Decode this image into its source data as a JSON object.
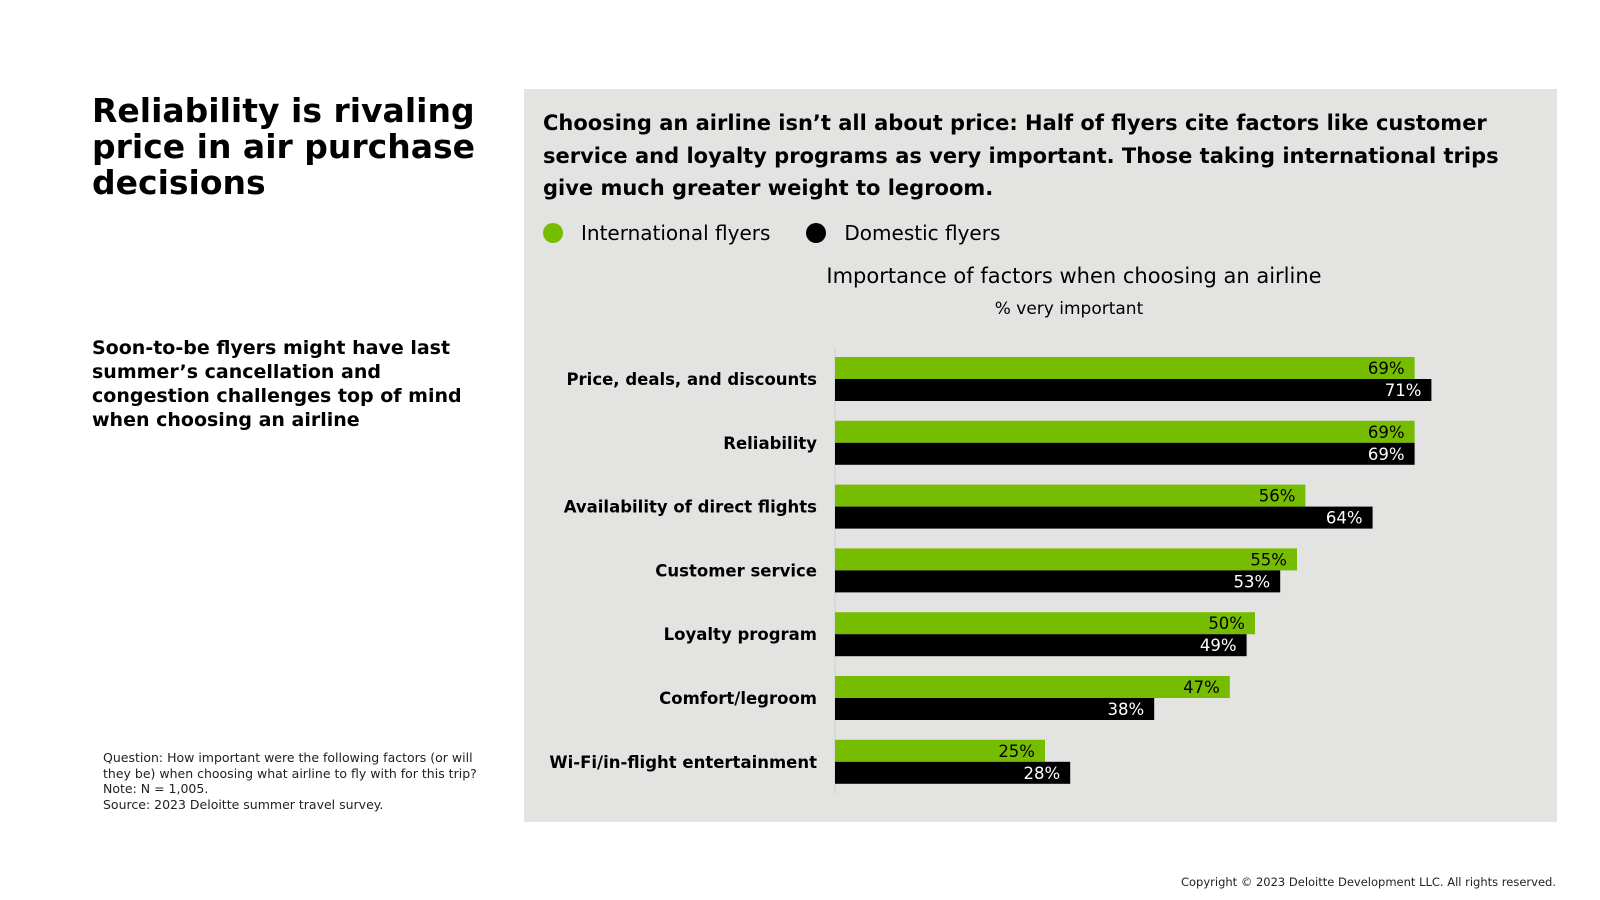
{
  "page": {
    "title": "Reliability is rivaling price in air purchase decisions",
    "subtitle": "Soon-to-be flyers might have last summer’s cancellation and congestion challenges top of mind when choosing an airline",
    "notes": {
      "question": "Question: How important were the following factors (or will they be) when choosing what airline to fly with for this trip?",
      "note": "Note: N = 1,005.",
      "source": "Source: 2023 Deloitte summer travel survey."
    },
    "copyright": "Copyright © 2023 Deloitte Development LLC. All rights reserved."
  },
  "panel": {
    "headline": "Choosing an airline isn’t all about price: Half of flyers cite factors like customer service and loyalty programs as very important. Those taking international trips give much greater weight to legroom."
  },
  "colors": {
    "international": "#76bc00",
    "domestic": "#000000",
    "panel_bg": "#e3e3e2"
  },
  "chart_data": {
    "type": "bar",
    "orientation": "horizontal",
    "title": "Importance of factors when choosing an airline",
    "subtitle": "% very important",
    "categories": [
      "Price, deals, and discounts",
      "Reliability",
      "Availability of direct flights",
      "Customer service",
      "Loyalty program",
      "Comfort/legroom",
      "Wi-Fi/in-flight entertainment"
    ],
    "series": [
      {
        "name": "International flyers",
        "color": "#76bc00",
        "values": [
          69,
          69,
          56,
          55,
          50,
          47,
          25
        ]
      },
      {
        "name": "Domestic flyers",
        "color": "#000000",
        "values": [
          71,
          69,
          64,
          53,
          49,
          38,
          28
        ]
      }
    ],
    "value_suffix": "%",
    "xlim": [
      0,
      100
    ],
    "legend": "top-left",
    "grid": false
  }
}
